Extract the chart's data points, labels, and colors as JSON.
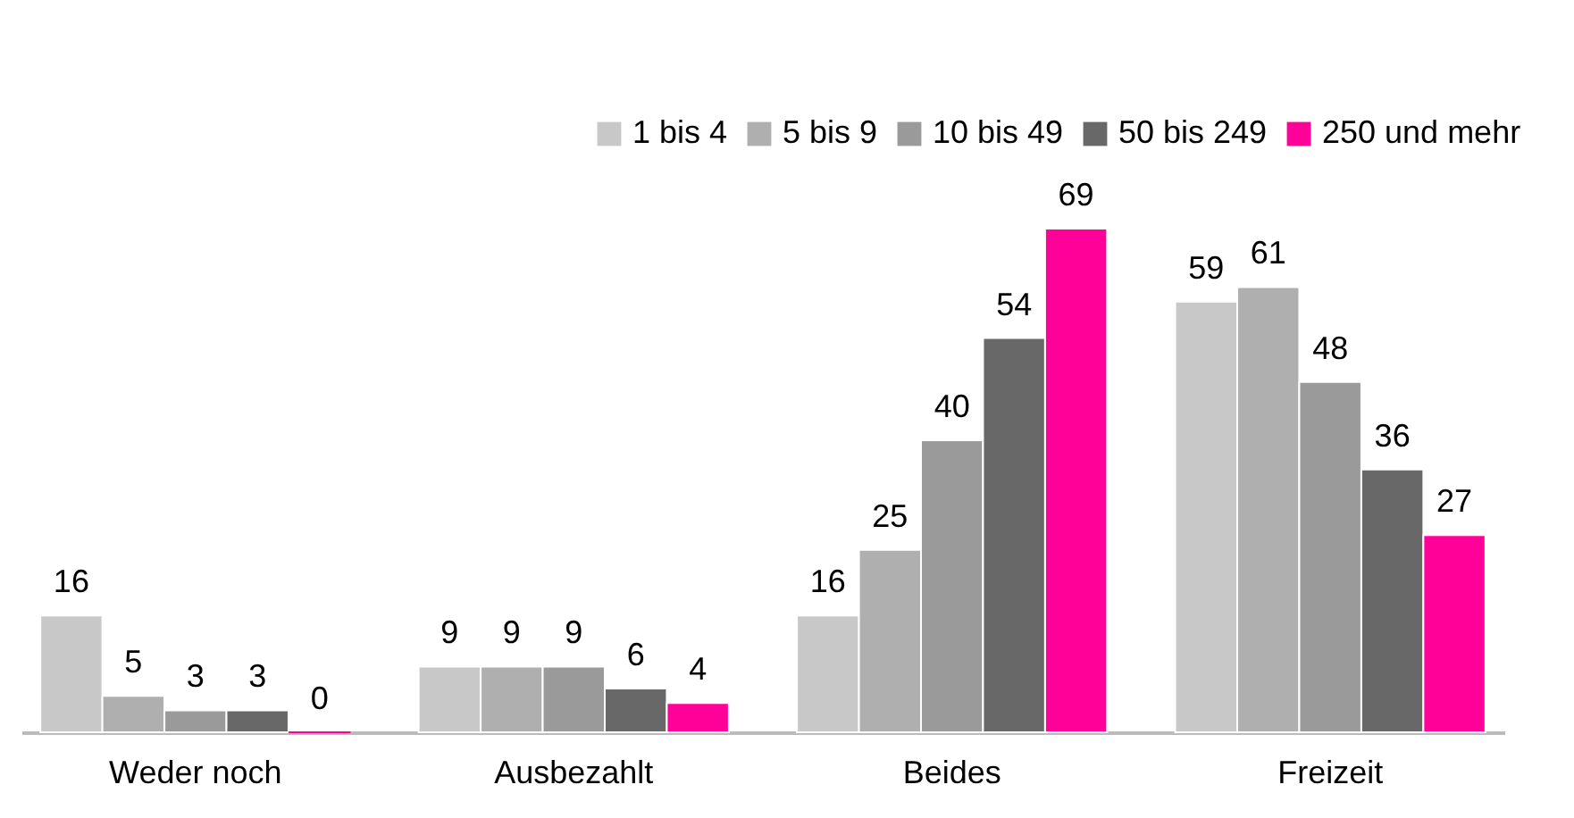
{
  "chart_data": {
    "type": "bar",
    "categories": [
      "Weder noch",
      "Ausbezahlt",
      "Beides",
      "Freizeit"
    ],
    "data_labels": true,
    "legend": "top right",
    "series": [
      {
        "name": "1 bis 4",
        "color": "#c8c8c8",
        "values": [
          16,
          9,
          16,
          59
        ]
      },
      {
        "name": "5 bis 9",
        "color": "#afafaf",
        "values": [
          5,
          9,
          25,
          61
        ]
      },
      {
        "name": "10 bis 49",
        "color": "#9a9a9a",
        "values": [
          3,
          9,
          40,
          48
        ]
      },
      {
        "name": "50 bis 249",
        "color": "#686868",
        "values": [
          3,
          6,
          54,
          36
        ]
      },
      {
        "name": "250 und mehr",
        "color": "#ff0099",
        "values": [
          0,
          4,
          69,
          27
        ]
      }
    ]
  }
}
